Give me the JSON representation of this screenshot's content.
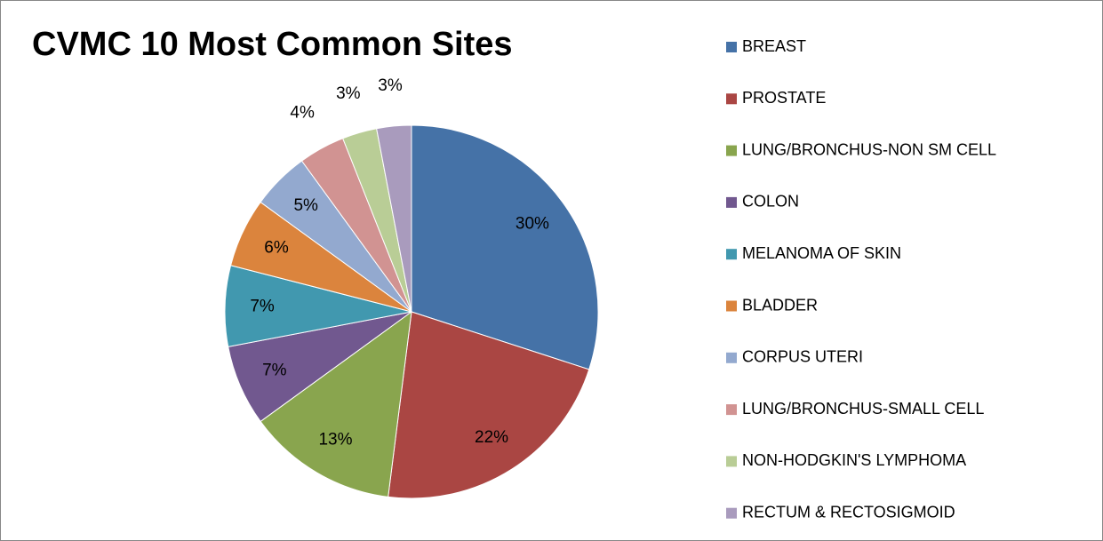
{
  "chart_data": {
    "type": "pie",
    "title": "CVMC 10 Most Common Sites",
    "categories": [
      "BREAST",
      "PROSTATE",
      "LUNG/BRONCHUS-NON SM CELL",
      "COLON",
      "MELANOMA OF SKIN",
      "BLADDER",
      "CORPUS UTERI",
      "LUNG/BRONCHUS-SMALL CELL",
      "NON-HODGKIN'S LYMPHOMA",
      "RECTUM & RECTOSIGMOID"
    ],
    "values": [
      30,
      22,
      13,
      7,
      7,
      6,
      5,
      4,
      3,
      3
    ],
    "value_labels": [
      "30%",
      "22%",
      "13%",
      "7%",
      "7%",
      "6%",
      "5%",
      "4%",
      "3%",
      "3%"
    ],
    "colors": [
      "#4572A7",
      "#AA4643",
      "#89A54E",
      "#71588F",
      "#4198AF",
      "#DB843D",
      "#93A9CF",
      "#D19392",
      "#B9CD96",
      "#A99BBD"
    ],
    "legend": "right"
  }
}
